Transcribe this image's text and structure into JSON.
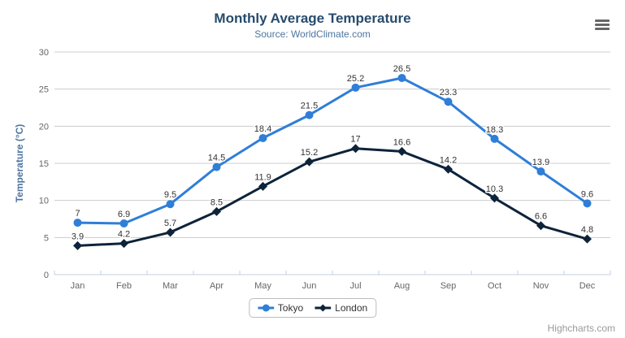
{
  "chart": {
    "title": "Monthly Average Temperature",
    "subtitle": "Source: WorldClimate.com",
    "y_axis_title": "Temperature (°C)",
    "credits": "Highcharts.com"
  },
  "chart_data": {
    "type": "line",
    "title": "Monthly Average Temperature",
    "subtitle": "Source: WorldClimate.com",
    "categories": [
      "Jan",
      "Feb",
      "Mar",
      "Apr",
      "May",
      "Jun",
      "Jul",
      "Aug",
      "Sep",
      "Oct",
      "Nov",
      "Dec"
    ],
    "series": [
      {
        "name": "Tokyo",
        "color": "#2f7ed8",
        "marker": "circle",
        "values": [
          7.0,
          6.9,
          9.5,
          14.5,
          18.4,
          21.5,
          25.2,
          26.5,
          23.3,
          18.3,
          13.9,
          9.6
        ]
      },
      {
        "name": "London",
        "color": "#0d233a",
        "marker": "diamond",
        "values": [
          3.9,
          4.2,
          5.7,
          8.5,
          11.9,
          15.2,
          17.0,
          16.6,
          14.2,
          10.3,
          6.6,
          4.8
        ]
      }
    ],
    "xlabel": "",
    "ylabel": "Temperature (°C)",
    "ylim": [
      0,
      30
    ],
    "ytick_step": 5,
    "grid": true,
    "data_labels": true,
    "legend_position": "bottom-center"
  },
  "colors": {
    "background": "#ffffff",
    "title": "#274b6d",
    "subtitle": "#4d759e",
    "axis_title": "#4d759e",
    "tick_label": "#666666",
    "data_label": "#333333",
    "grid_line": "#cccccc",
    "axis_line": "#c0d0e0",
    "legend_border": "#bdbdbd",
    "legend_text": "#333333",
    "credits": "#9a9a9a",
    "menu_icon": "#666666"
  }
}
